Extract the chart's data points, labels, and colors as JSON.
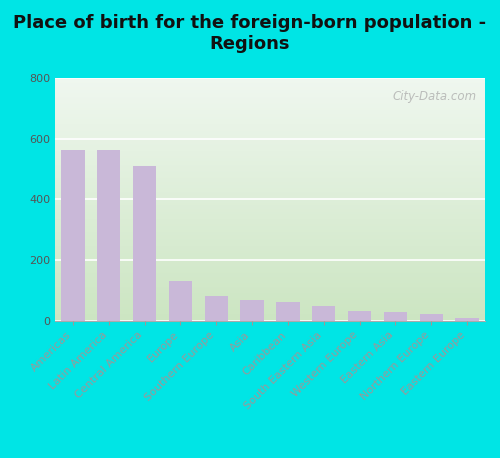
{
  "title": "Place of birth for the foreign-born population -\nRegions",
  "categories": [
    "Americas",
    "Latin America",
    "Central America",
    "Europe",
    "Southern Europe",
    "Asia",
    "Caribbean",
    "South Eastern Asia",
    "Western Europe",
    "Eastern Asia",
    "Northern Europe",
    "Eastern Europe"
  ],
  "values": [
    563,
    563,
    510,
    130,
    80,
    68,
    62,
    47,
    30,
    27,
    23,
    8
  ],
  "bar_color": "#c9b8d8",
  "ylim": [
    0,
    800
  ],
  "yticks": [
    0,
    200,
    400,
    600,
    800
  ],
  "background_outer": "#00e5e5",
  "bg_top_left": "#ddeedd",
  "bg_top_right": "#f0f8f0",
  "bg_bottom_left": "#c8ddb8",
  "bg_bottom_right": "#e8f0d8",
  "grid_color": "#ffffff",
  "watermark": "City-Data.com",
  "title_fontsize": 13,
  "tick_fontsize": 8,
  "bar_width": 0.65
}
